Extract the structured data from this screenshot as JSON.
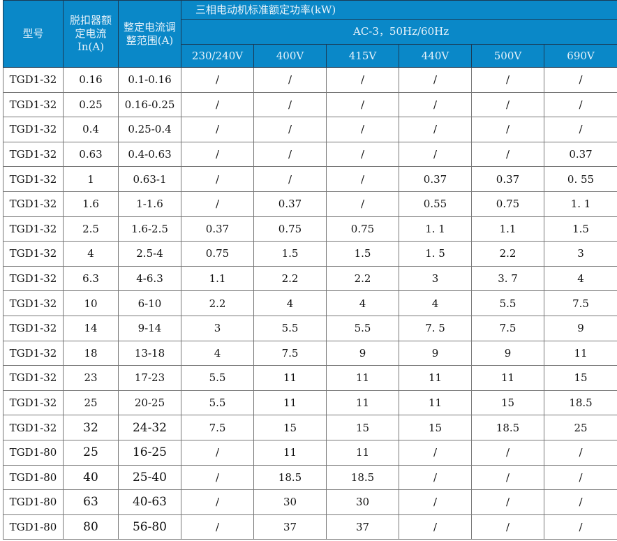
{
  "header": {
    "model": "型号",
    "rated_current": "脱扣器额定电流 In(A)",
    "setting_range": "整定电流调整范围(A)",
    "power_title": "三相电动机标准额定功率(kW)",
    "power_subtitle": "AC-3，50Hz/60Hz",
    "voltages": [
      "230/240V",
      "400V",
      "415V",
      "440V",
      "500V",
      "690V"
    ]
  },
  "rows": [
    [
      "TGD1-32",
      "0.16",
      "0.1-0.16",
      "/",
      "/",
      "/",
      "/",
      "/",
      "/"
    ],
    [
      "TGD1-32",
      "0.25",
      "0.16-0.25",
      "/",
      "/",
      "/",
      "/",
      "/",
      "/"
    ],
    [
      "TGD1-32",
      "0.4",
      "0.25-0.4",
      "/",
      "/",
      "/",
      "/",
      "/",
      "/"
    ],
    [
      "TGD1-32",
      "0.63",
      "0.4-0.63",
      "/",
      "/",
      "/",
      "/",
      "/",
      "0.37"
    ],
    [
      "TGD1-32",
      "1",
      "0.63-1",
      "/",
      "/",
      "/",
      "0.37",
      "0.37",
      "0. 55"
    ],
    [
      "TGD1-32",
      "1.6",
      "1-1.6",
      "/",
      "0.37",
      "/",
      "0.55",
      "0.75",
      "1. 1"
    ],
    [
      "TGD1-32",
      "2.5",
      "1.6-2.5",
      "0.37",
      "0.75",
      "0.75",
      "1. 1",
      "1.1",
      "1.5"
    ],
    [
      "TGD1-32",
      "4",
      "2.5-4",
      "0.75",
      "1.5",
      "1.5",
      "1. 5",
      "2.2",
      "3"
    ],
    [
      "TGD1-32",
      "6.3",
      "4-6.3",
      "1.1",
      "2.2",
      "2.2",
      "3",
      "3. 7",
      "4"
    ],
    [
      "TGD1-32",
      "10",
      "6-10",
      "2.2",
      "4",
      "4",
      "4",
      "5.5",
      "7.5"
    ],
    [
      "TGD1-32",
      "14",
      "9-14",
      "3",
      "5.5",
      "5.5",
      "7. 5",
      "7.5",
      "9"
    ],
    [
      "TGD1-32",
      "18",
      "13-18",
      "4",
      "7.5",
      "9",
      "9",
      "9",
      "11"
    ],
    [
      "TGD1-32",
      "23",
      "17-23",
      "5.5",
      "11",
      "11",
      "11",
      "11",
      "15"
    ],
    [
      "TGD1-32",
      "25",
      "20-25",
      "5.5",
      "11",
      "11",
      "11",
      "15",
      "18.5"
    ],
    [
      "TGD1-32",
      "32",
      "24-32",
      "7.5",
      "15",
      "15",
      "15",
      "18.5",
      "25"
    ],
    [
      "TGD1-80",
      "25",
      "16-25",
      "/",
      "11",
      "11",
      "/",
      "/",
      "/"
    ],
    [
      "TGD1-80",
      "40",
      "25-40",
      "/",
      "18.5",
      "18.5",
      "/",
      "/",
      "/"
    ],
    [
      "TGD1-80",
      "63",
      "40-63",
      "/",
      "30",
      "30",
      "/",
      "/",
      "/"
    ],
    [
      "TGD1-80",
      "80",
      "56-80",
      "/",
      "37",
      "37",
      "/",
      "/",
      "/"
    ]
  ],
  "colors": {
    "header_bg": "#0a88c8",
    "header_text": "#e6f2fa"
  }
}
